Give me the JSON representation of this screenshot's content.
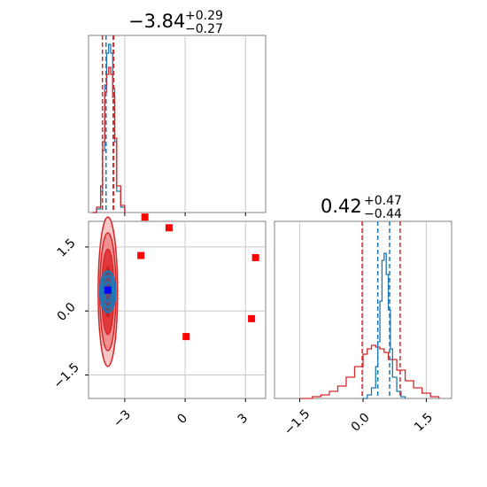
{
  "chart_data": [
    {
      "panel": "marginal-top-left",
      "type": "histogram",
      "title": {
        "value": "−3.84",
        "plus": "+0.29",
        "minus": "−0.27"
      },
      "xlim": [
        -4.8,
        4.0
      ],
      "grid": true,
      "quantile_lines": {
        "blue": [
          -3.93,
          -3.58
        ],
        "red": [
          -4.11,
          -3.55
        ]
      },
      "series": [
        {
          "color": "#1f77b4",
          "bins_x": [
            -4.6,
            -4.4,
            -4.2,
            -4.1,
            -4.0,
            -3.9,
            -3.8,
            -3.7,
            -3.6,
            -3.5,
            -3.4,
            -3.2,
            -3.0
          ],
          "bins_y": [
            0.0,
            0.02,
            0.12,
            0.35,
            0.72,
            0.9,
            0.95,
            0.9,
            0.7,
            0.4,
            0.12,
            0.03,
            0.0
          ]
        },
        {
          "color": "#d62728",
          "bins_x": [
            -4.6,
            -4.4,
            -4.2,
            -4.1,
            -4.0,
            -3.9,
            -3.8,
            -3.7,
            -3.6,
            -3.5,
            -3.4,
            -3.2,
            -3.0
          ],
          "bins_y": [
            0.0,
            0.03,
            0.15,
            0.4,
            0.68,
            0.78,
            0.82,
            0.78,
            0.65,
            0.42,
            0.15,
            0.04,
            0.0
          ]
        }
      ]
    },
    {
      "panel": "joint-bottom-left",
      "type": "scatter",
      "xlim": [
        -4.8,
        4.0
      ],
      "ylim": [
        -2.05,
        2.1
      ],
      "xticks": [
        "−3",
        "0",
        "3"
      ],
      "yticks": [
        "−1.5",
        "0.0",
        "1.5"
      ],
      "grid": true,
      "points_red": [
        [
          -2.0,
          2.2
        ],
        [
          -0.8,
          1.95
        ],
        [
          -2.2,
          1.3
        ],
        [
          3.5,
          1.25
        ],
        [
          0.05,
          -0.6
        ],
        [
          3.3,
          -0.18
        ]
      ],
      "point_blue": [
        -3.84,
        0.49
      ],
      "contour_center": [
        -3.84,
        0.45
      ]
    },
    {
      "panel": "marginal-bottom-right",
      "type": "histogram",
      "title": {
        "value": "0.42",
        "plus": "+0.47",
        "minus": "−0.44"
      },
      "xlim": [
        -2.1,
        2.1
      ],
      "xticks": [
        "−1.5",
        "0.0",
        "1.5"
      ],
      "grid": true,
      "quantile_lines": {
        "blue": [
          0.35,
          0.63
        ],
        "red": [
          -0.02,
          0.88
        ]
      },
      "series": [
        {
          "color": "#1f77b4",
          "bins_x": [
            0.0,
            0.1,
            0.2,
            0.3,
            0.35,
            0.4,
            0.45,
            0.5,
            0.55,
            0.6,
            0.65,
            0.7,
            0.8,
            0.9,
            1.0
          ],
          "bins_y": [
            0.0,
            0.02,
            0.06,
            0.18,
            0.32,
            0.55,
            0.78,
            0.82,
            0.7,
            0.5,
            0.28,
            0.12,
            0.04,
            0.01,
            0.0
          ]
        },
        {
          "color": "#d62728",
          "bins_x": [
            -1.5,
            -1.2,
            -1.0,
            -0.8,
            -0.6,
            -0.4,
            -0.2,
            0.0,
            0.1,
            0.2,
            0.3,
            0.4,
            0.5,
            0.6,
            0.8,
            1.0,
            1.2,
            1.4,
            1.6,
            1.8
          ],
          "bins_y": [
            0.0,
            0.01,
            0.02,
            0.04,
            0.07,
            0.12,
            0.18,
            0.25,
            0.28,
            0.3,
            0.29,
            0.28,
            0.26,
            0.22,
            0.16,
            0.1,
            0.06,
            0.03,
            0.01,
            0.0
          ]
        }
      ]
    }
  ]
}
